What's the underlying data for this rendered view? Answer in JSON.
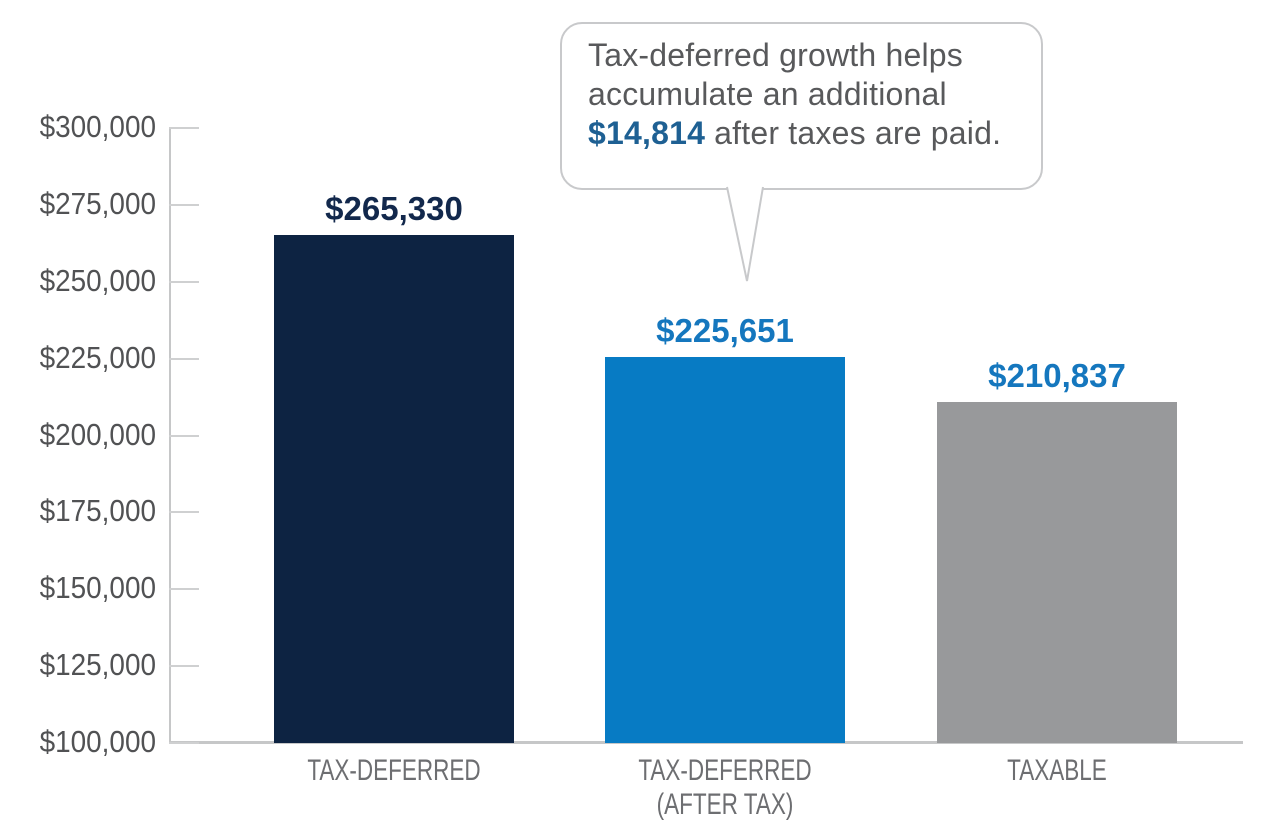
{
  "chart_data": {
    "type": "bar",
    "title": "",
    "xlabel": "",
    "ylabel": "",
    "categories": [
      "TAX-DEFERRED",
      "TAX-DEFERRED\n(AFTER TAX)",
      "TAXABLE"
    ],
    "values": [
      265330,
      225651,
      210837
    ],
    "value_labels": [
      "$265,330",
      "$225,651",
      "$210,837"
    ],
    "bar_colors": [
      "#0d2342",
      "#077bc4",
      "#98999b"
    ],
    "value_label_colors": [
      "#12284c",
      "#1577be",
      "#1577be"
    ],
    "ylim": [
      100000,
      300000
    ],
    "ytick_step": 25000,
    "ytick_labels": [
      "$100,000",
      "$125,000",
      "$150,000",
      "$175,000",
      "$200,000",
      "$225,000",
      "$250,000",
      "$275,000",
      "$300,000"
    ],
    "grid": false,
    "legend": "none"
  },
  "callout": {
    "line1": "Tax-deferred growth helps",
    "line2": "accumulate an additional",
    "amount": "$14,814",
    "line3_suffix": "after taxes are paid.",
    "amount_color": "#1e6093",
    "text_color": "#58595b",
    "border_color": "#c8c9cb"
  },
  "colors": {
    "axis": "#c6c7c8",
    "y_tick_label": "#515254",
    "category_label": "#6d6e71",
    "background": "#ffffff"
  }
}
